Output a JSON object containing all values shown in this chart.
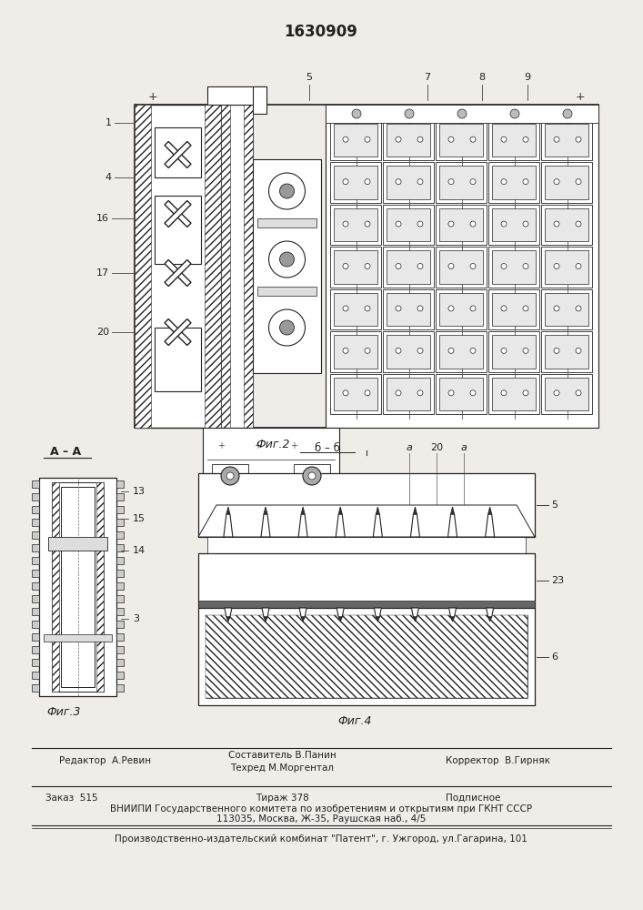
{
  "patent_number": "1630909",
  "bg_color": "#f0ede8",
  "text_color": "#111111",
  "footer_line1_left": "Редактор  А.Ревин",
  "footer_line1_center_top": "Составитель В.Панин",
  "footer_line1_center_bot": "Техред М.Моргентал",
  "footer_line1_right": "Корректор  В.Гирняк",
  "footer_line2_left": "Заказ  515",
  "footer_line2_center": "Тираж 378",
  "footer_line2_right": "Подписное",
  "footer_line3": "ВНИИПИ Государственного комитета по изобретениям и открытиям при ГКНТ СССР",
  "footer_line4": "113035, Москва, Ж-35, Раушская наб., 4/5",
  "footer_line5": "Производственно-издательский комбинат \"Патент\", г. Ужгород, ул.Гагарина, 101",
  "fig2_caption": "Фиг.2",
  "fig3_caption": "Фиг.3",
  "fig4_caption": "Фиг.4",
  "fig3_label": "А – А",
  "hatch_color": "#444444",
  "line_color": "#222222"
}
